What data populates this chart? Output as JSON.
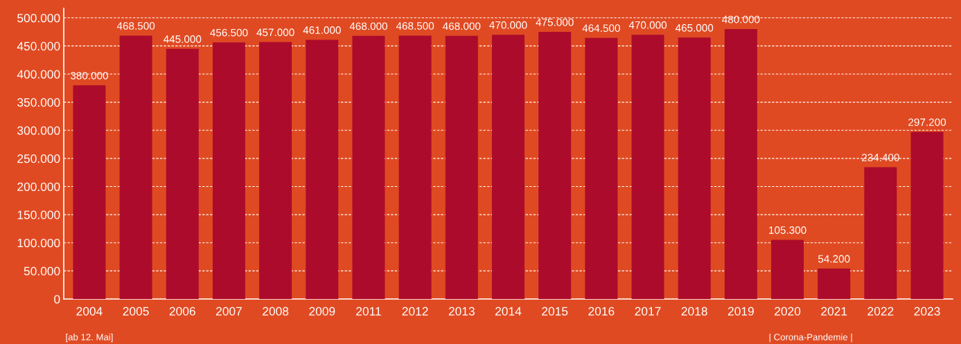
{
  "chart_data": {
    "type": "bar",
    "categories": [
      "2004",
      "2005",
      "2006",
      "2007",
      "2008",
      "2009",
      "2011",
      "2012",
      "2013",
      "2014",
      "2015",
      "2016",
      "2017",
      "2018",
      "2019",
      "2020",
      "2021",
      "2022",
      "2023"
    ],
    "values": [
      380000,
      468500,
      445000,
      456500,
      457000,
      461000,
      468000,
      468500,
      468000,
      470000,
      475000,
      464500,
      470000,
      465000,
      480000,
      105300,
      54200,
      234400,
      297200
    ],
    "value_labels": [
      "380.000",
      "468.500",
      "445.000",
      "456.500",
      "457.000",
      "461.000",
      "468.000",
      "468.500",
      "468.000",
      "470.000",
      "475.000",
      "464.500",
      "470.000",
      "465.000",
      "480.000",
      "105.300",
      "54.200",
      "234.400",
      "297.200"
    ],
    "color": "#ad0b2b",
    "ylim": [
      0,
      517000
    ],
    "yticks": [
      0,
      {
        "value": 50000,
        "label": "50.000"
      },
      {
        "value": 100000,
        "label": "100.000"
      },
      {
        "value": 150000,
        "label": "150.000"
      },
      {
        "value": 200000,
        "label": "200.000"
      },
      {
        "value": 250000,
        "label": "250.000"
      },
      {
        "value": 300000,
        "label": "300.000"
      },
      {
        "value": 350000,
        "label": "350.000"
      },
      {
        "value": 400000,
        "label": "400.000"
      },
      {
        "value": 450000,
        "label": "450.000"
      },
      {
        "value": 500000,
        "label": "500.000"
      }
    ],
    "grid": "y",
    "annotations": [
      "[ab 12. Mai]",
      "| Corona-Pandemie |"
    ]
  }
}
